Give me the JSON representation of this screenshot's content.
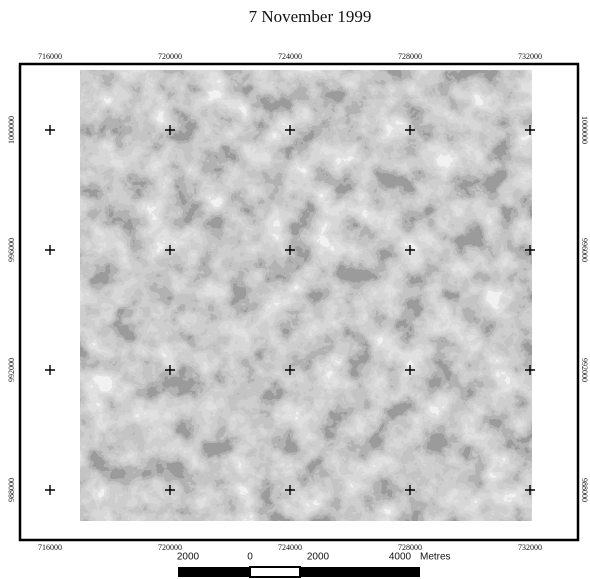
{
  "map": {
    "title": "7 November 1999",
    "x_ticks": [
      716000,
      720000,
      724000,
      728000,
      732000
    ],
    "y_ticks": [
      1000000,
      996000,
      992000,
      988000
    ],
    "scale_bar": {
      "labels": [
        2000,
        0,
        2000,
        4000
      ],
      "unit": "Metres"
    }
  }
}
